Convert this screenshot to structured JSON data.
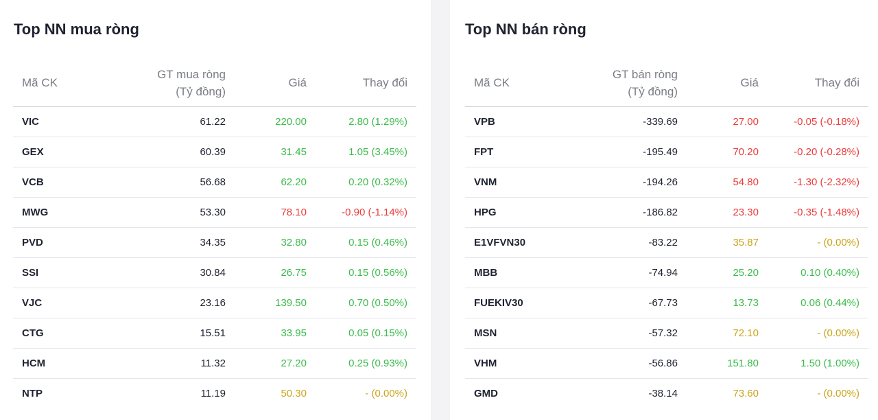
{
  "colors": {
    "up": "#3dbb4d",
    "down": "#ec3c3c",
    "reference": "#c9a51c"
  },
  "buy": {
    "title": "Top NN mua ròng",
    "headers": {
      "code": "Mã CK",
      "value_line1": "GT mua ròng",
      "value_line2": "(Tỷ đồng)",
      "price": "Giá",
      "change": "Thay đổi"
    },
    "rows": [
      {
        "code": "VIC",
        "value": "61.22",
        "price": "220.00",
        "change": "2.80 (1.29%)",
        "trend": "up"
      },
      {
        "code": "GEX",
        "value": "60.39",
        "price": "31.45",
        "change": "1.05 (3.45%)",
        "trend": "up"
      },
      {
        "code": "VCB",
        "value": "56.68",
        "price": "62.20",
        "change": "0.20 (0.32%)",
        "trend": "up"
      },
      {
        "code": "MWG",
        "value": "53.30",
        "price": "78.10",
        "change": "-0.90 (-1.14%)",
        "trend": "down"
      },
      {
        "code": "PVD",
        "value": "34.35",
        "price": "32.80",
        "change": "0.15 (0.46%)",
        "trend": "up"
      },
      {
        "code": "SSI",
        "value": "30.84",
        "price": "26.75",
        "change": "0.15 (0.56%)",
        "trend": "up"
      },
      {
        "code": "VJC",
        "value": "23.16",
        "price": "139.50",
        "change": "0.70 (0.50%)",
        "trend": "up"
      },
      {
        "code": "CTG",
        "value": "15.51",
        "price": "33.95",
        "change": "0.05 (0.15%)",
        "trend": "up"
      },
      {
        "code": "HCM",
        "value": "11.32",
        "price": "27.20",
        "change": "0.25 (0.93%)",
        "trend": "up"
      },
      {
        "code": "NTP",
        "value": "11.19",
        "price": "50.30",
        "change": "- (0.00%)",
        "trend": "ref"
      }
    ]
  },
  "sell": {
    "title": "Top NN bán ròng",
    "headers": {
      "code": "Mã CK",
      "value_line1": "GT bán ròng",
      "value_line2": "(Tỷ đồng)",
      "price": "Giá",
      "change": "Thay đổi"
    },
    "rows": [
      {
        "code": "VPB",
        "value": "-339.69",
        "price": "27.00",
        "change": "-0.05 (-0.18%)",
        "trend": "down"
      },
      {
        "code": "FPT",
        "value": "-195.49",
        "price": "70.20",
        "change": "-0.20 (-0.28%)",
        "trend": "down"
      },
      {
        "code": "VNM",
        "value": "-194.26",
        "price": "54.80",
        "change": "-1.30 (-2.32%)",
        "trend": "down"
      },
      {
        "code": "HPG",
        "value": "-186.82",
        "price": "23.30",
        "change": "-0.35 (-1.48%)",
        "trend": "down"
      },
      {
        "code": "E1VFVN30",
        "value": "-83.22",
        "price": "35.87",
        "change": "- (0.00%)",
        "trend": "ref"
      },
      {
        "code": "MBB",
        "value": "-74.94",
        "price": "25.20",
        "change": "0.10 (0.40%)",
        "trend": "up"
      },
      {
        "code": "FUEKIV30",
        "value": "-67.73",
        "price": "13.73",
        "change": "0.06 (0.44%)",
        "trend": "up"
      },
      {
        "code": "MSN",
        "value": "-57.32",
        "price": "72.10",
        "change": "- (0.00%)",
        "trend": "ref"
      },
      {
        "code": "VHM",
        "value": "-56.86",
        "price": "151.80",
        "change": "1.50 (1.00%)",
        "trend": "up"
      },
      {
        "code": "GMD",
        "value": "-38.14",
        "price": "73.60",
        "change": "- (0.00%)",
        "trend": "ref"
      }
    ]
  }
}
